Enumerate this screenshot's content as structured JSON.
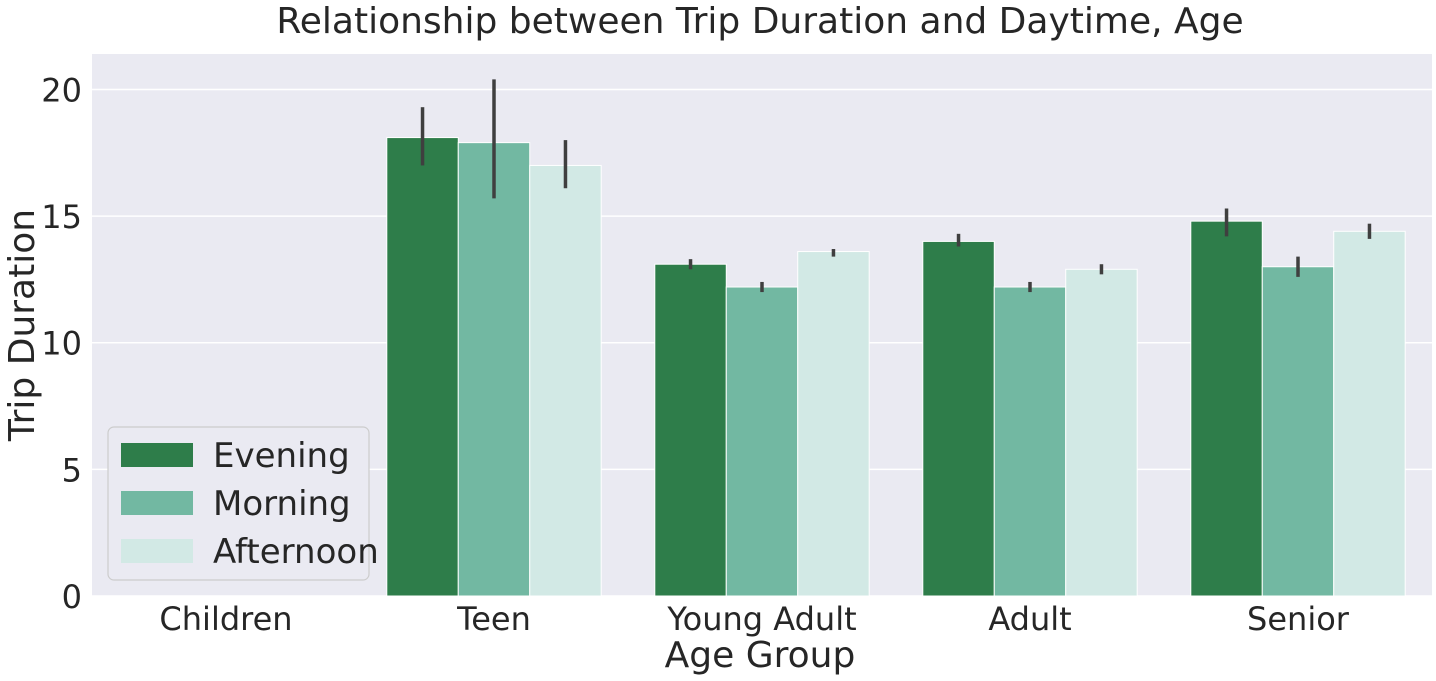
{
  "chart_data": {
    "type": "bar",
    "title": "Relationship between Trip Duration and Daytime, Age",
    "xlabel": "Age Group",
    "ylabel": "Trip Duration",
    "categories": [
      "Children",
      "Teen",
      "Young Adult",
      "Adult",
      "Senior"
    ],
    "series": [
      {
        "name": "Evening",
        "color": "#2e7d4a",
        "values": [
          null,
          18.1,
          13.1,
          14.0,
          14.8
        ],
        "err_low": [
          null,
          17.0,
          12.9,
          13.8,
          14.2
        ],
        "err_high": [
          null,
          19.3,
          13.3,
          14.3,
          15.3
        ]
      },
      {
        "name": "Morning",
        "color": "#72b8a2",
        "values": [
          null,
          17.9,
          12.2,
          12.2,
          13.0
        ],
        "err_low": [
          null,
          15.7,
          12.0,
          12.0,
          12.6
        ],
        "err_high": [
          null,
          20.4,
          12.4,
          12.4,
          13.4
        ]
      },
      {
        "name": "Afternoon",
        "color": "#d2e9e5",
        "values": [
          null,
          17.0,
          13.6,
          12.9,
          14.4
        ],
        "err_low": [
          null,
          16.1,
          13.4,
          12.7,
          14.1
        ],
        "err_high": [
          null,
          18.0,
          13.7,
          13.1,
          14.7
        ]
      }
    ],
    "yticks": [
      "0",
      "5",
      "10",
      "15",
      "20"
    ],
    "ylim": [
      0,
      21.4
    ],
    "grid": true,
    "legend_position": "bottom-left",
    "background_color": "#eaeaf2",
    "errorbar_color": "#3f3f3f"
  }
}
